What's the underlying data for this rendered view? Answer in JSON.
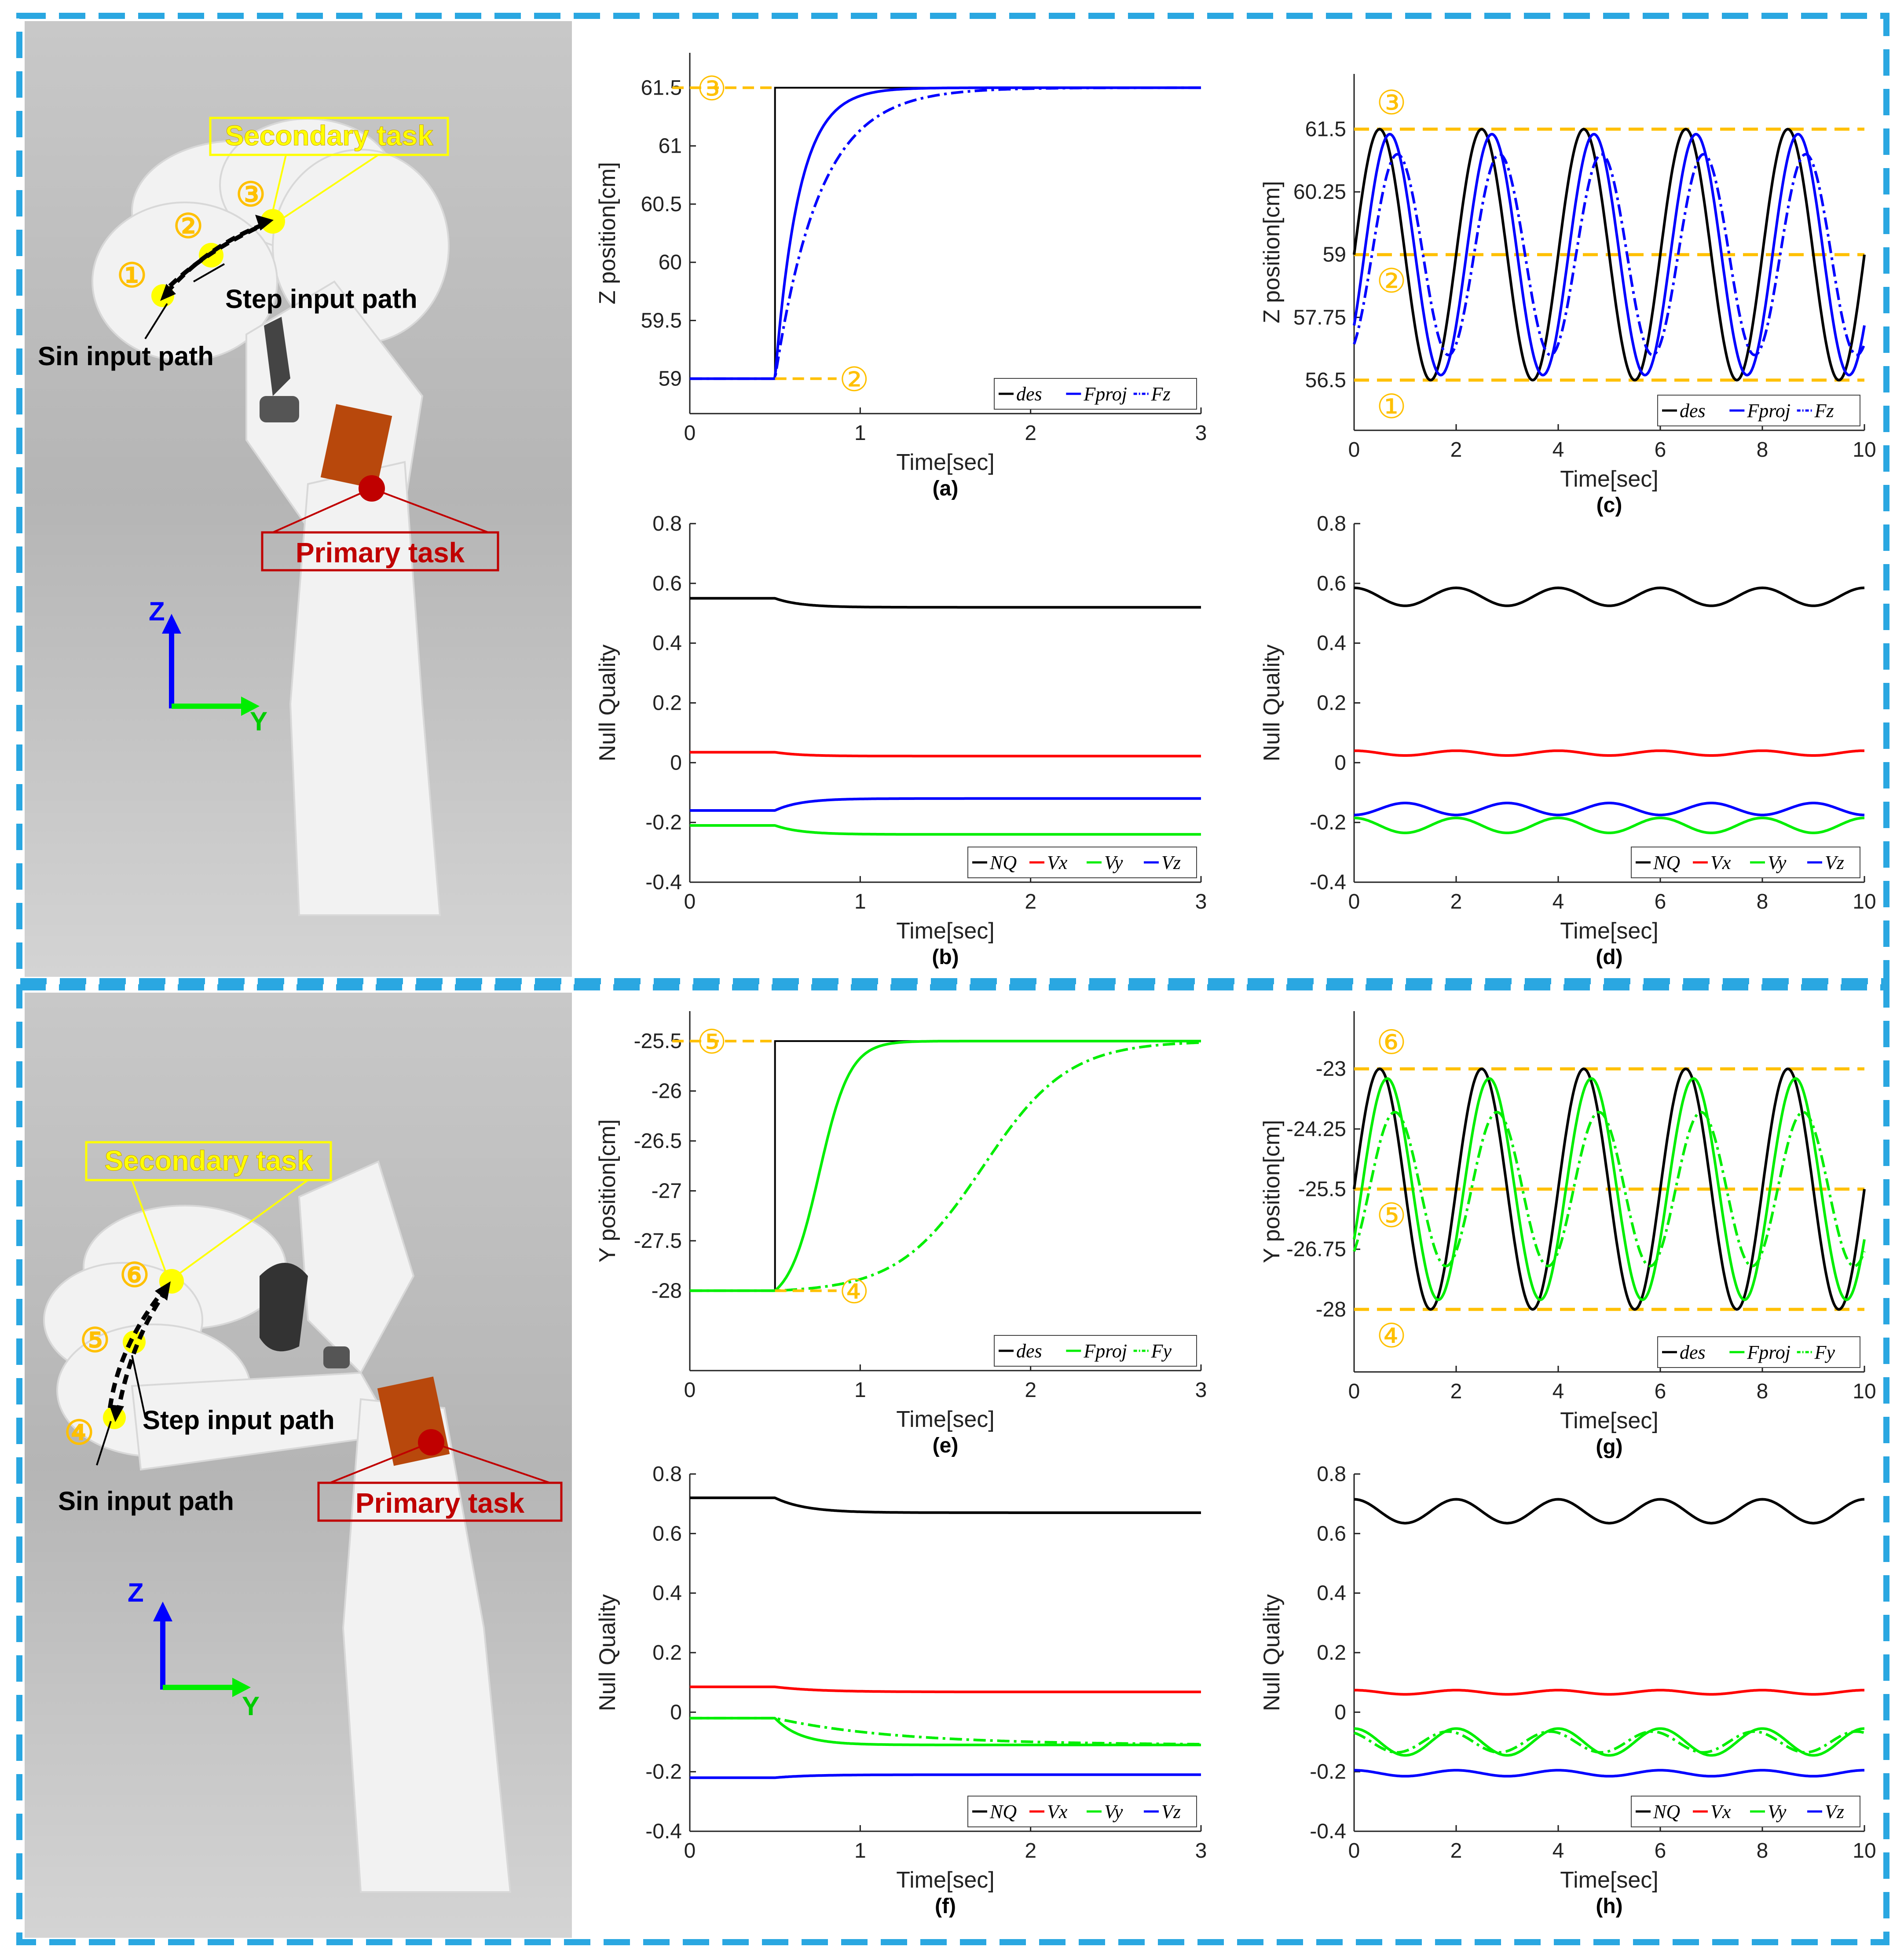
{
  "colors": {
    "frame": "#2aa7e1",
    "marker": "#ffc000",
    "des": "#000000",
    "z": "#0000ff",
    "y": "#00ee00",
    "x": "#ff0000",
    "nq": "#000000",
    "primary": "#c00000",
    "secondary_dot": "#ffff00"
  },
  "robot_top": {
    "secondary_label": "Secondary task",
    "primary_label": "Primary task",
    "step_label": "Step input path",
    "sin_label": "Sin input path",
    "points": [
      "①",
      "②",
      "③"
    ],
    "axis_up": "Z",
    "axis_right": "Y"
  },
  "robot_bottom": {
    "secondary_label": "Secondary task",
    "primary_label": "Primary task",
    "step_label": "Step input path",
    "sin_label": "Sin input path",
    "points": [
      "④",
      "⑤",
      "⑥"
    ],
    "axis_up": "Z",
    "axis_right": "Y"
  },
  "chart_data": [
    {
      "id": "a",
      "type": "line",
      "caption": "(a)",
      "xlabel": "Time[sec]",
      "ylabel": "Z position[cm]",
      "xlim": [
        0,
        3
      ],
      "ylim": [
        58.7,
        61.8
      ],
      "xticks": [
        0,
        1,
        2,
        3
      ],
      "yticks": [
        59,
        59.5,
        60,
        60.5,
        61,
        61.5
      ],
      "yticklabels": [
        "59",
        "59.5",
        "60",
        "60.5",
        "61",
        "61.5"
      ],
      "step_time": 0.5,
      "initial": 59,
      "final": 61.5,
      "series": [
        {
          "name": "des",
          "kind": "step",
          "color": "#000000",
          "dash": "solid"
        },
        {
          "name": "F_proj",
          "kind": "first_order",
          "tau": 0.14,
          "color": "#0000ff",
          "dash": "solid"
        },
        {
          "name": "F_z",
          "kind": "first_order",
          "tau": 0.26,
          "color": "#0000ff",
          "dash": "dashdot"
        }
      ],
      "legend": [
        [
          "—des",
          "des"
        ],
        [
          "—Fproj",
          "F_proj"
        ],
        [
          "-·-Fz",
          "F_z"
        ]
      ],
      "legend_position": "bottom-right",
      "markers": [
        {
          "label": "③",
          "value": 61.5,
          "side": "left"
        },
        {
          "label": "②",
          "value": 59,
          "side": "right"
        }
      ]
    },
    {
      "id": "b",
      "type": "line",
      "caption": "(b)",
      "xlabel": "Time[sec]",
      "ylabel": "Null Quality",
      "xlim": [
        0,
        3
      ],
      "ylim": [
        -0.4,
        0.8
      ],
      "xticks": [
        0,
        1,
        2,
        3
      ],
      "yticks": [
        -0.4,
        -0.2,
        0,
        0.2,
        0.4,
        0.6,
        0.8
      ],
      "yticklabels": [
        "-0.4",
        "-0.2",
        "0",
        "0.2",
        "0.4",
        "0.6",
        "0.8"
      ],
      "step_time": 0.5,
      "series": [
        {
          "name": "NQ",
          "kind": "transition",
          "from": 0.55,
          "to": 0.52,
          "tau": 0.15,
          "color": "#000000",
          "dash": "solid"
        },
        {
          "name": "V_x",
          "kind": "transition",
          "from": 0.035,
          "to": 0.022,
          "tau": 0.15,
          "color": "#ff0000",
          "dash": "solid"
        },
        {
          "name": "V_y",
          "kind": "transition",
          "from": -0.21,
          "to": -0.24,
          "tau": 0.15,
          "color": "#00ee00",
          "dash": "solid"
        },
        {
          "name": "V_z",
          "kind": "transition",
          "from": -0.16,
          "to": -0.12,
          "tau": 0.15,
          "color": "#0000ff",
          "dash": "solid"
        }
      ],
      "legend": [
        [
          "—NQ",
          "NQ"
        ],
        [
          "—Vx",
          "V_x"
        ],
        [
          "—Vy",
          "V_y"
        ],
        [
          "—Vz",
          "V_z"
        ]
      ],
      "legend_position": "bottom-right"
    },
    {
      "id": "c",
      "type": "line",
      "caption": "(c)",
      "xlabel": "Time[sec]",
      "ylabel": "Z position[cm]",
      "xlim": [
        0,
        10
      ],
      "ylim": [
        55.5,
        62.6
      ],
      "xticks": [
        0,
        2,
        4,
        6,
        8,
        10
      ],
      "yticks": [
        56.5,
        57.75,
        59,
        60.25,
        61.5
      ],
      "yticklabels": [
        "56.5",
        "57.75",
        "59",
        "60.25",
        "61.5"
      ],
      "center": 59,
      "amplitude": 2.5,
      "period": 2,
      "series": [
        {
          "name": "des",
          "kind": "sine",
          "amp": 2.5,
          "lag": 0.0,
          "color": "#000000",
          "dash": "solid"
        },
        {
          "name": "F_proj",
          "kind": "sine",
          "amp": 2.4,
          "lag": 0.2,
          "color": "#0000ff",
          "dash": "solid"
        },
        {
          "name": "F_z",
          "kind": "sine",
          "amp": 2.0,
          "lag": 0.35,
          "color": "#0000ff",
          "dash": "dashdot"
        }
      ],
      "legend": [
        [
          "—des",
          "des"
        ],
        [
          "—Fproj",
          "F_proj"
        ],
        [
          "-·-Fz",
          "F_z"
        ]
      ],
      "legend_position": "bottom-right",
      "hlines": [
        61.5,
        59,
        56.5
      ],
      "markers": [
        {
          "label": "③",
          "value": 61.5,
          "side": "above"
        },
        {
          "label": "②",
          "value": 59,
          "side": "below"
        },
        {
          "label": "①",
          "value": 56.5,
          "side": "below"
        }
      ]
    },
    {
      "id": "d",
      "type": "line",
      "caption": "(d)",
      "xlabel": "Time[sec]",
      "ylabel": "Null Quality",
      "xlim": [
        0,
        10
      ],
      "ylim": [
        -0.4,
        0.8
      ],
      "xticks": [
        0,
        2,
        4,
        6,
        8,
        10
      ],
      "yticks": [
        -0.4,
        -0.2,
        0,
        0.2,
        0.4,
        0.6,
        0.8
      ],
      "yticklabels": [
        "-0.4",
        "-0.2",
        "0",
        "0.2",
        "0.4",
        "0.6",
        "0.8"
      ],
      "series": [
        {
          "name": "NQ",
          "kind": "osc",
          "mean": 0.555,
          "amp": 0.03,
          "phase": 0.0,
          "color": "#000000",
          "dash": "solid"
        },
        {
          "name": "V_x",
          "kind": "osc",
          "mean": 0.032,
          "amp": 0.008,
          "phase": 0.0,
          "color": "#ff0000",
          "dash": "solid"
        },
        {
          "name": "V_y",
          "kind": "osc",
          "mean": -0.21,
          "amp": 0.025,
          "phase": 0.0,
          "color": "#00ee00",
          "dash": "solid"
        },
        {
          "name": "V_z",
          "kind": "osc",
          "mean": -0.155,
          "amp": 0.02,
          "phase": 3.14159,
          "color": "#0000ff",
          "dash": "solid"
        }
      ],
      "legend": [
        [
          "—NQ",
          "NQ"
        ],
        [
          "—Vx",
          "V_x"
        ],
        [
          "—Vy",
          "V_y"
        ],
        [
          "—Vz",
          "V_z"
        ]
      ],
      "legend_position": "bottom-right"
    },
    {
      "id": "e",
      "type": "line",
      "caption": "(e)",
      "xlabel": "Time[sec]",
      "ylabel": "Y position[cm]",
      "xlim": [
        0,
        3
      ],
      "ylim": [
        -28.8,
        -25.2
      ],
      "xticks": [
        0,
        1,
        2,
        3
      ],
      "yticks": [
        -28,
        -27.5,
        -27,
        -26.5,
        -26,
        -25.5
      ],
      "yticklabels": [
        "-28",
        "-27.5",
        "-27",
        "-26.5",
        "-26",
        "-25.5"
      ],
      "step_time": 0.5,
      "initial": -28,
      "final": -25.5,
      "series": [
        {
          "name": "des",
          "kind": "step",
          "color": "#000000",
          "dash": "solid"
        },
        {
          "name": "F_proj",
          "kind": "sigmoid",
          "mid": 0.76,
          "width": 0.09,
          "color": "#00ee00",
          "dash": "solid"
        },
        {
          "name": "F_y",
          "kind": "sigmoid",
          "mid": 1.72,
          "width": 0.25,
          "color": "#00ee00",
          "dash": "dashdot"
        }
      ],
      "legend": [
        [
          "—des",
          "des"
        ],
        [
          "—Fproj",
          "F_proj"
        ],
        [
          "-·-Fy",
          "F_y"
        ]
      ],
      "legend_position": "bottom-right",
      "markers": [
        {
          "label": "⑤",
          "value": -25.5,
          "side": "left"
        },
        {
          "label": "④",
          "value": -28,
          "side": "right"
        }
      ]
    },
    {
      "id": "f",
      "type": "line",
      "caption": "(f)",
      "xlabel": "Time[sec]",
      "ylabel": "Null Quality",
      "xlim": [
        0,
        3
      ],
      "ylim": [
        -0.4,
        0.8
      ],
      "xticks": [
        0,
        1,
        2,
        3
      ],
      "yticks": [
        -0.4,
        -0.2,
        0,
        0.2,
        0.4,
        0.6,
        0.8
      ],
      "yticklabels": [
        "-0.4",
        "-0.2",
        "0",
        "0.2",
        "0.4",
        "0.6",
        "0.8"
      ],
      "step_time": 0.5,
      "series": [
        {
          "name": "NQ",
          "kind": "transition",
          "from": 0.72,
          "to": 0.67,
          "tau": 0.18,
          "color": "#000000",
          "dash": "solid"
        },
        {
          "name": "V_x",
          "kind": "transition",
          "from": 0.085,
          "to": 0.068,
          "tau": 0.25,
          "color": "#ff0000",
          "dash": "solid"
        },
        {
          "name": "V_y",
          "kind": "transition",
          "from": -0.02,
          "to": -0.11,
          "tau": 0.15,
          "color": "#00ee00",
          "dash": "solid"
        },
        {
          "name": "V_y (dashed)",
          "kind": "transition",
          "from": -0.02,
          "to": -0.11,
          "tau": 0.7,
          "color": "#00ee00",
          "dash": "dashdot"
        },
        {
          "name": "V_z",
          "kind": "transition",
          "from": -0.22,
          "to": -0.21,
          "tau": 0.2,
          "color": "#0000ff",
          "dash": "solid"
        }
      ],
      "legend": [
        [
          "—NQ",
          "NQ"
        ],
        [
          "—Vx",
          "V_x"
        ],
        [
          "—Vy",
          "V_y"
        ],
        [
          "—Vz",
          "V_z"
        ]
      ],
      "legend_position": "bottom-right"
    },
    {
      "id": "g",
      "type": "line",
      "caption": "(g)",
      "xlabel": "Time[sec]",
      "ylabel": "Y position[cm]",
      "xlim": [
        0,
        10
      ],
      "ylim": [
        -29.3,
        -21.8
      ],
      "xticks": [
        0,
        2,
        4,
        6,
        8,
        10
      ],
      "yticks": [
        -28,
        -26.75,
        -25.5,
        -24.25,
        -23
      ],
      "yticklabels": [
        "-28",
        "-26.75",
        "-25.5",
        "-24.25",
        "-23"
      ],
      "center": -25.5,
      "amplitude": 2.5,
      "period": 2,
      "series": [
        {
          "name": "des",
          "kind": "sine",
          "amp": 2.5,
          "lag": 0.0,
          "color": "#000000",
          "dash": "solid"
        },
        {
          "name": "F_proj",
          "kind": "sine",
          "amp": 2.3,
          "lag": 0.15,
          "color": "#00ee00",
          "dash": "solid"
        },
        {
          "name": "F_y",
          "kind": "sine",
          "amp": 1.6,
          "lag": 0.3,
          "color": "#00ee00",
          "dash": "dashdot"
        }
      ],
      "legend": [
        [
          "—des",
          "des"
        ],
        [
          "—Fproj",
          "F_proj"
        ],
        [
          "-·-Fy",
          "F_y"
        ]
      ],
      "legend_position": "bottom-right",
      "hlines": [
        -23,
        -25.5,
        -28
      ],
      "markers": [
        {
          "label": "⑥",
          "value": -23,
          "side": "above"
        },
        {
          "label": "⑤",
          "value": -25.5,
          "side": "below"
        },
        {
          "label": "④",
          "value": -28,
          "side": "below"
        }
      ]
    },
    {
      "id": "h",
      "type": "line",
      "caption": "(h)",
      "xlabel": "Time[sec]",
      "ylabel": "Null Quality",
      "xlim": [
        0,
        10
      ],
      "ylim": [
        -0.4,
        0.8
      ],
      "xticks": [
        0,
        2,
        4,
        6,
        8,
        10
      ],
      "yticks": [
        -0.4,
        -0.2,
        0,
        0.2,
        0.4,
        0.6,
        0.8
      ],
      "yticklabels": [
        "-0.4",
        "-0.2",
        "0",
        "0.2",
        "0.4",
        "0.6",
        "0.8"
      ],
      "series": [
        {
          "name": "NQ",
          "kind": "osc",
          "mean": 0.675,
          "amp": 0.04,
          "phase": 0.0,
          "color": "#000000",
          "dash": "solid"
        },
        {
          "name": "V_x",
          "kind": "osc",
          "mean": 0.067,
          "amp": 0.007,
          "phase": 0.0,
          "color": "#ff0000",
          "dash": "solid"
        },
        {
          "name": "V_y",
          "kind": "osc",
          "mean": -0.1,
          "amp": 0.045,
          "phase": 0.0,
          "color": "#00ee00",
          "dash": "solid"
        },
        {
          "name": "V_y (dashed)",
          "kind": "osc",
          "mean": -0.1,
          "amp": 0.035,
          "phase": 0.5,
          "color": "#00ee00",
          "dash": "dashdot"
        },
        {
          "name": "V_z",
          "kind": "osc",
          "mean": -0.205,
          "amp": 0.01,
          "phase": 0.0,
          "color": "#0000ff",
          "dash": "solid"
        }
      ],
      "legend": [
        [
          "—NQ",
          "NQ"
        ],
        [
          "—Vx",
          "V_x"
        ],
        [
          "—Vy",
          "V_y"
        ],
        [
          "—Vz",
          "V_z"
        ]
      ],
      "legend_position": "bottom-right"
    }
  ]
}
